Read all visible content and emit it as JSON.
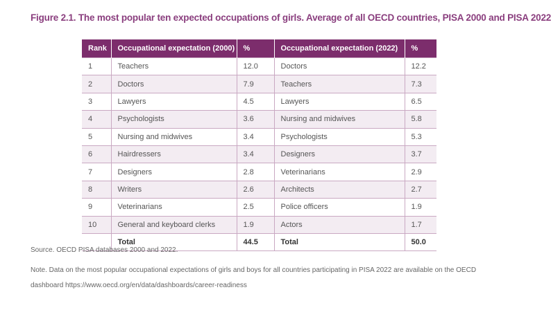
{
  "figure": {
    "title": "Figure  2.1. The most popular ten expected occupations of girls. Average of all OECD countries, PISA 2000 and PISA 2022"
  },
  "table": {
    "headers": [
      "Rank",
      "Occupational expectation  (2000)",
      "%",
      "Occupational expectation  (2022)",
      "%"
    ],
    "rows": [
      [
        "1",
        "Teachers",
        "12.0",
        "Doctors",
        "12.2"
      ],
      [
        "2",
        "Doctors",
        "7.9",
        "Teachers",
        "7.3"
      ],
      [
        "3",
        "Lawyers",
        "4.5",
        "Lawyers",
        "6.5"
      ],
      [
        "4",
        "Psychologists",
        "3.6",
        "Nursing and midwives",
        "5.8"
      ],
      [
        "5",
        "Nursing and midwives",
        "3.4",
        "Psychologists",
        "5.3"
      ],
      [
        "6",
        "Hairdressers",
        "3.4",
        "Designers",
        "3.7"
      ],
      [
        "7",
        "Designers",
        "2.8",
        "Veterinarians",
        "2.9"
      ],
      [
        "8",
        "Writers",
        "2.6",
        "Architects",
        "2.7"
      ],
      [
        "9",
        "Veterinarians",
        "2.5",
        "Police officers",
        "1.9"
      ],
      [
        "10",
        "General and keyboard clerks",
        "1.9",
        "Actors",
        "1.7"
      ]
    ],
    "total": [
      "",
      "Total",
      "44.5",
      "Total",
      "50.0"
    ]
  },
  "source": "Source. OECD PISA databases 2000 and 2022.",
  "note": "Note. Data on the most popular occupational expectations of girls and boys for all countries participating in PISA 2022 are available on the OECD dashboard https://www.oecd.org/en/data/dashboards/career-readiness",
  "colors": {
    "accent": "#7c2d6c",
    "title": "#8a3e7e",
    "stripe": "#f3ecf2"
  }
}
